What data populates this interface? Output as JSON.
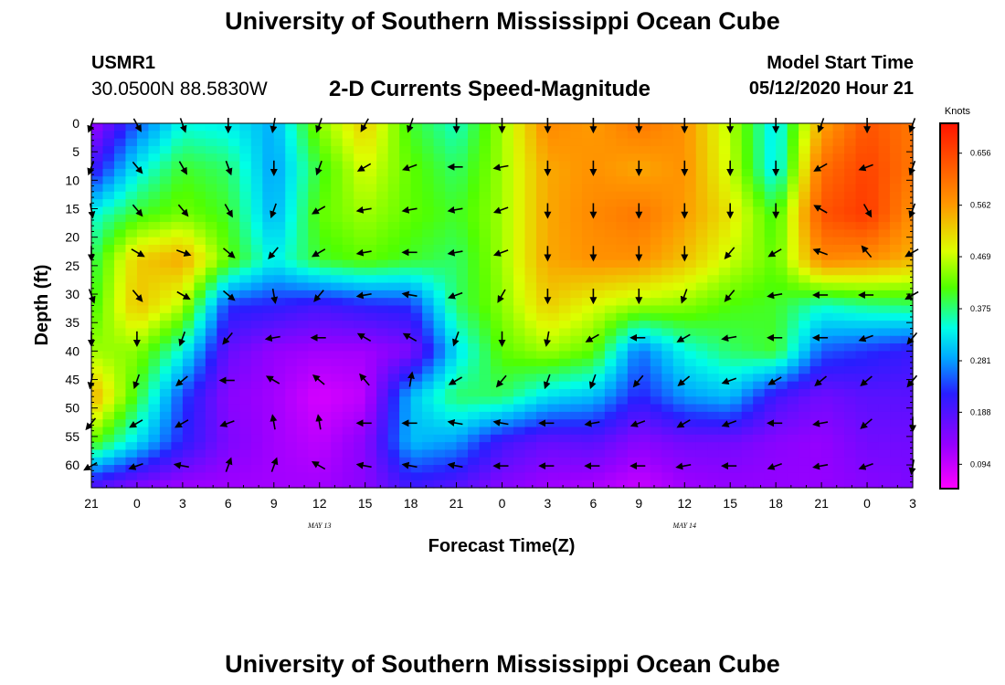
{
  "header": {
    "title_top": "University of Southern Mississippi Ocean Cube",
    "station": "USMR1",
    "location": "30.0500N 88.5830W",
    "chart_title": "2-D Currents Speed-Magnitude",
    "model_start_label": "Model Start Time",
    "model_start_value": "05/12/2020 Hour 21",
    "title_bottom": "University of Southern Mississippi Ocean Cube"
  },
  "chart_data": {
    "type": "heatmap",
    "title": "2-D Currents Speed-Magnitude",
    "xlabel": "Forecast Time(Z)",
    "ylabel": "Depth (ft)",
    "x_ticks": [
      "21",
      "0",
      "3",
      "6",
      "9",
      "12",
      "15",
      "18",
      "21",
      "0",
      "3",
      "6",
      "9",
      "12",
      "15",
      "18",
      "21",
      "0",
      "3"
    ],
    "x_range_hours": [
      0,
      54
    ],
    "date_labels": [
      {
        "text": "MAY  13",
        "hour": 15
      },
      {
        "text": "MAY  14",
        "hour": 39
      }
    ],
    "y_ticks": [
      0,
      5,
      10,
      15,
      20,
      25,
      30,
      35,
      40,
      45,
      50,
      55,
      60
    ],
    "y_range": [
      0,
      64
    ],
    "colorbar": {
      "unit": "Knots",
      "ticks": [
        "0.656",
        "0.562",
        "0.469",
        "0.375",
        "0.281",
        "0.188",
        "0.094"
      ],
      "range": [
        0.05,
        0.71
      ]
    },
    "speed_grid": {
      "x_hours": [
        0,
        3,
        6,
        9,
        12,
        15,
        18,
        21,
        24,
        27,
        30,
        33,
        36,
        39,
        42,
        45,
        48,
        51,
        54
      ],
      "depths": [
        0,
        8,
        16,
        24,
        32,
        40,
        48,
        56,
        64
      ],
      "values": [
        [
          0.12,
          0.25,
          0.34,
          0.33,
          0.29,
          0.44,
          0.52,
          0.4,
          0.35,
          0.45,
          0.58,
          0.56,
          0.6,
          0.57,
          0.46,
          0.32,
          0.55,
          0.64,
          0.6
        ],
        [
          0.2,
          0.33,
          0.4,
          0.38,
          0.28,
          0.4,
          0.48,
          0.42,
          0.38,
          0.45,
          0.55,
          0.57,
          0.55,
          0.57,
          0.47,
          0.32,
          0.61,
          0.66,
          0.6
        ],
        [
          0.34,
          0.4,
          0.43,
          0.4,
          0.29,
          0.42,
          0.45,
          0.42,
          0.4,
          0.45,
          0.55,
          0.58,
          0.6,
          0.56,
          0.5,
          0.4,
          0.64,
          0.67,
          0.57
        ],
        [
          0.38,
          0.52,
          0.55,
          0.42,
          0.33,
          0.4,
          0.42,
          0.4,
          0.38,
          0.45,
          0.55,
          0.57,
          0.57,
          0.53,
          0.47,
          0.42,
          0.58,
          0.57,
          0.54
        ],
        [
          0.4,
          0.53,
          0.46,
          0.23,
          0.22,
          0.2,
          0.22,
          0.23,
          0.38,
          0.44,
          0.52,
          0.48,
          0.45,
          0.44,
          0.41,
          0.4,
          0.35,
          0.37,
          0.38
        ],
        [
          0.45,
          0.44,
          0.34,
          0.17,
          0.13,
          0.12,
          0.12,
          0.15,
          0.32,
          0.42,
          0.45,
          0.42,
          0.26,
          0.34,
          0.38,
          0.4,
          0.25,
          0.23,
          0.21
        ],
        [
          0.55,
          0.4,
          0.24,
          0.14,
          0.12,
          0.08,
          0.1,
          0.3,
          0.38,
          0.38,
          0.32,
          0.3,
          0.22,
          0.28,
          0.3,
          0.2,
          0.16,
          0.18,
          0.18
        ],
        [
          0.42,
          0.32,
          0.22,
          0.15,
          0.12,
          0.1,
          0.14,
          0.3,
          0.28,
          0.2,
          0.17,
          0.18,
          0.14,
          0.16,
          0.16,
          0.14,
          0.13,
          0.16,
          0.16
        ],
        [
          0.18,
          0.14,
          0.12,
          0.12,
          0.12,
          0.12,
          0.14,
          0.2,
          0.18,
          0.14,
          0.12,
          0.11,
          0.09,
          0.12,
          0.13,
          0.13,
          0.13,
          0.14,
          0.15
        ]
      ]
    },
    "arrows": {
      "x_hours": [
        0,
        3,
        6,
        9,
        12,
        15,
        18,
        21,
        24,
        27,
        30,
        33,
        36,
        39,
        42,
        45,
        48,
        51,
        54
      ],
      "depths": [
        0,
        7.5,
        15,
        22.5,
        30,
        37.5,
        45,
        52.5,
        60
      ],
      "direction_deg": [
        [
          200,
          150,
          160,
          180,
          190,
          200,
          210,
          200,
          180,
          180,
          180,
          180,
          180,
          180,
          180,
          180,
          200,
          180,
          200
        ],
        [
          200,
          140,
          150,
          160,
          180,
          200,
          240,
          250,
          270,
          260,
          180,
          180,
          180,
          180,
          180,
          180,
          240,
          250,
          200
        ],
        [
          170,
          140,
          140,
          150,
          200,
          240,
          260,
          260,
          260,
          250,
          180,
          180,
          180,
          180,
          180,
          180,
          300,
          150,
          200
        ],
        [
          180,
          120,
          110,
          130,
          220,
          240,
          260,
          270,
          260,
          250,
          180,
          180,
          180,
          180,
          220,
          240,
          290,
          320,
          240
        ],
        [
          160,
          140,
          120,
          130,
          170,
          220,
          260,
          280,
          250,
          210,
          180,
          180,
          180,
          200,
          220,
          260,
          270,
          270,
          240
        ],
        [
          180,
          180,
          200,
          220,
          260,
          270,
          300,
          300,
          200,
          180,
          190,
          240,
          270,
          240,
          260,
          270,
          270,
          250,
          220
        ],
        [
          190,
          200,
          230,
          270,
          300,
          310,
          320,
          10,
          240,
          220,
          200,
          200,
          220,
          230,
          250,
          240,
          230,
          230,
          220
        ],
        [
          220,
          240,
          240,
          250,
          350,
          350,
          270,
          270,
          280,
          280,
          270,
          260,
          250,
          240,
          250,
          270,
          260,
          230,
          180
        ],
        [
          240,
          250,
          280,
          20,
          20,
          300,
          280,
          280,
          280,
          270,
          270,
          270,
          270,
          260,
          270,
          250,
          260,
          250,
          190
        ]
      ]
    }
  }
}
